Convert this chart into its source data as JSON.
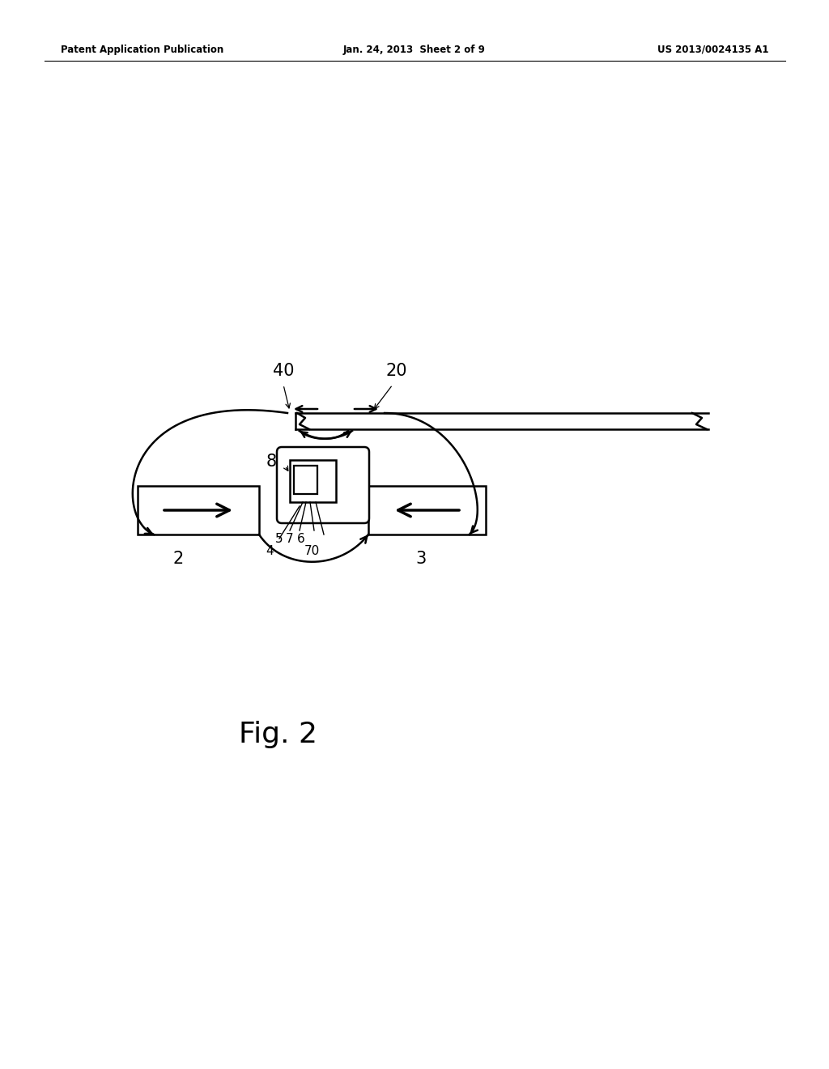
{
  "bg_color": "#ffffff",
  "line_color": "#000000",
  "header_left": "Patent Application Publication",
  "header_mid": "Jan. 24, 2013  Sheet 2 of 9",
  "header_right": "US 2013/0024135 A1",
  "fig_label": "Fig. 2"
}
